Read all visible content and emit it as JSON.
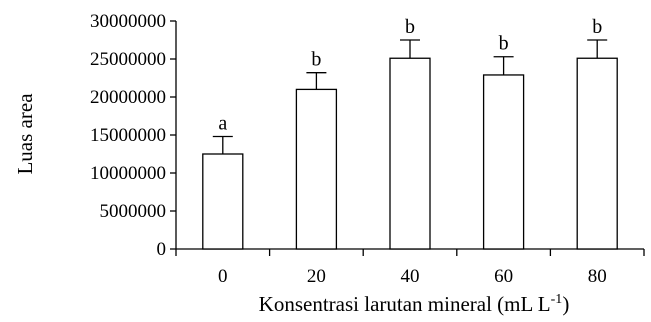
{
  "chart_data": {
    "type": "bar",
    "categories": [
      "0",
      "20",
      "40",
      "60",
      "80"
    ],
    "values": [
      12500000,
      21000000,
      25100000,
      22900000,
      25100000
    ],
    "error": [
      2300000,
      2200000,
      2400000,
      2400000,
      2400000
    ],
    "significance": [
      "a",
      "b",
      "b",
      "b",
      "b"
    ],
    "title": "",
    "xlabel_main": "Konsentrasi larutan mineral (mL L",
    "xlabel_sup": "-1",
    "xlabel_tail": ")",
    "ylabel": "Luas area",
    "ylim": [
      0,
      30000000
    ],
    "yticks": [
      "0",
      "5000000",
      "10000000",
      "15000000",
      "20000000",
      "25000000",
      "30000000"
    ],
    "ytick_values": [
      0,
      5000000,
      10000000,
      15000000,
      20000000,
      25000000,
      30000000
    ],
    "grid": false,
    "bar_fill": "#ffffff",
    "bar_stroke": "#000000"
  }
}
